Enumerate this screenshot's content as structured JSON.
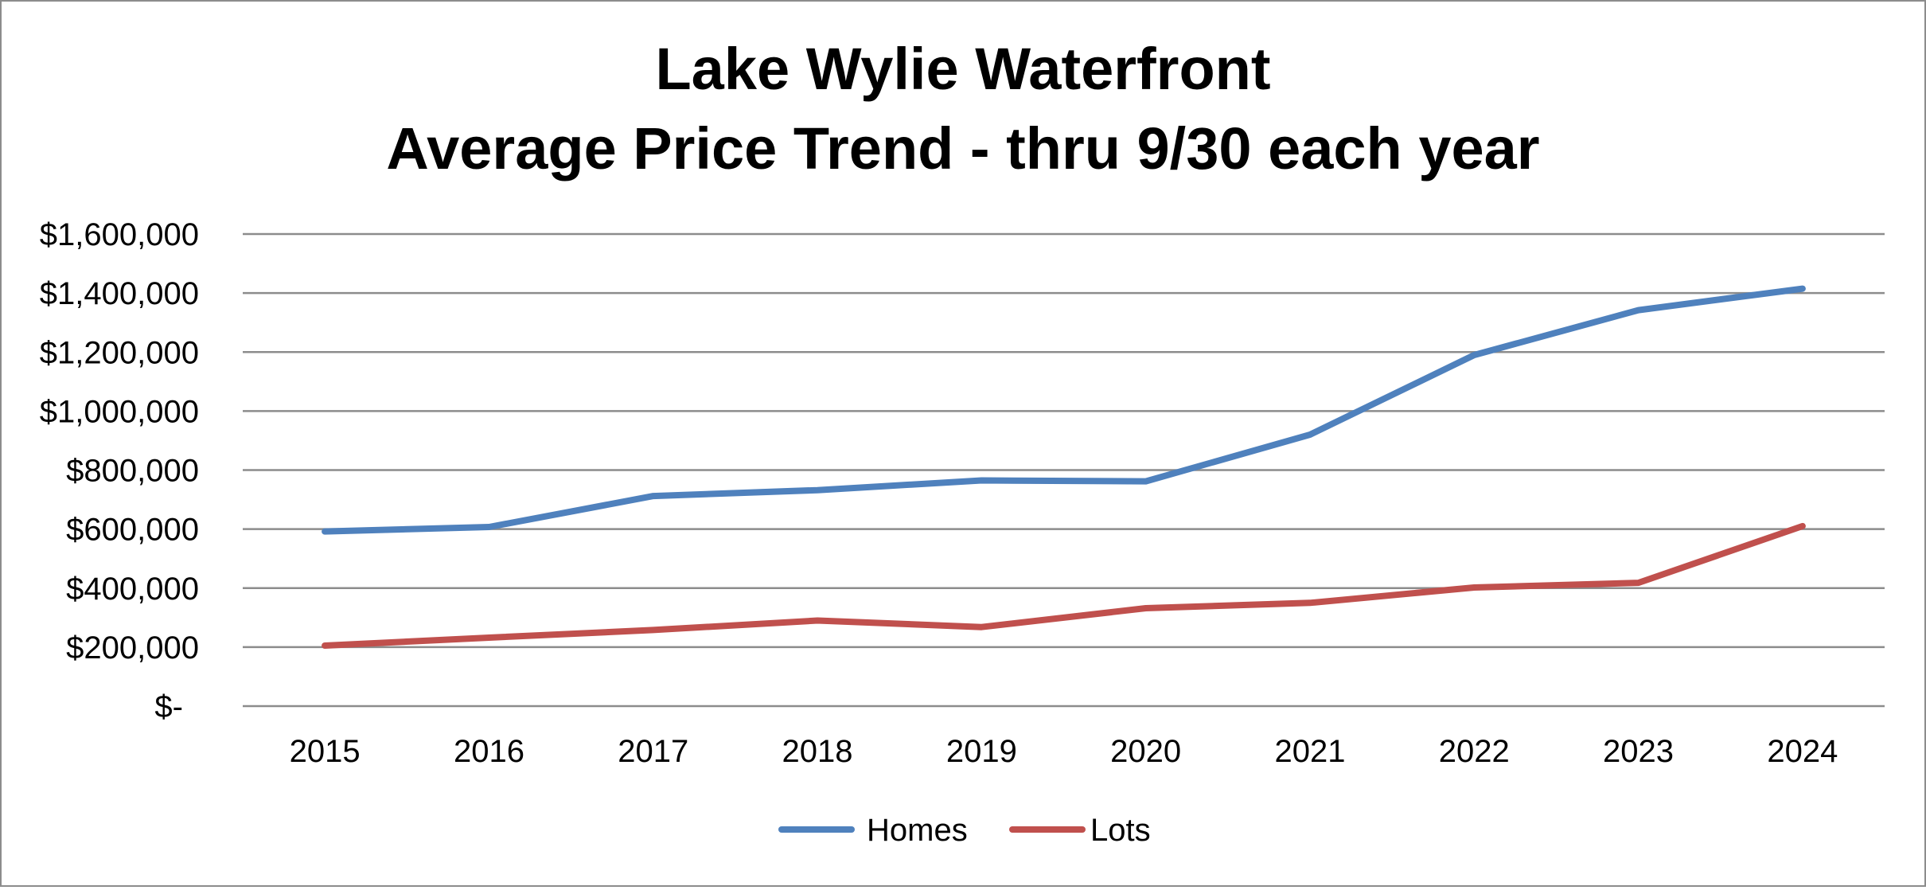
{
  "chart_data": {
    "type": "line",
    "title_lines": [
      "Lake Wylie Waterfront",
      "Average Price Trend - thru 9/30 each year"
    ],
    "categories": [
      "2015",
      "2016",
      "2017",
      "2018",
      "2019",
      "2020",
      "2021",
      "2022",
      "2023",
      "2024"
    ],
    "series": [
      {
        "name": "Homes",
        "color": "#4f81bd",
        "values": [
          592000,
          607000,
          712000,
          732000,
          765000,
          762000,
          920000,
          1190000,
          1342000,
          1415000
        ]
      },
      {
        "name": "Lots",
        "color": "#c0504d",
        "values": [
          205000,
          232000,
          258000,
          290000,
          268000,
          332000,
          350000,
          402000,
          418000,
          610000
        ]
      }
    ],
    "ylim": [
      0,
      1600000
    ],
    "y_ticks": [
      0,
      200000,
      400000,
      600000,
      800000,
      1000000,
      1200000,
      1400000,
      1600000
    ],
    "y_tick_labels": [
      "$-",
      "$200,000",
      "$400,000",
      "$600,000",
      "$800,000",
      "$1,000,000",
      "$1,200,000",
      "$1,400,000",
      "$1,600,000"
    ],
    "grid": true,
    "legend_position": "bottom",
    "xlabel": "",
    "ylabel": ""
  }
}
